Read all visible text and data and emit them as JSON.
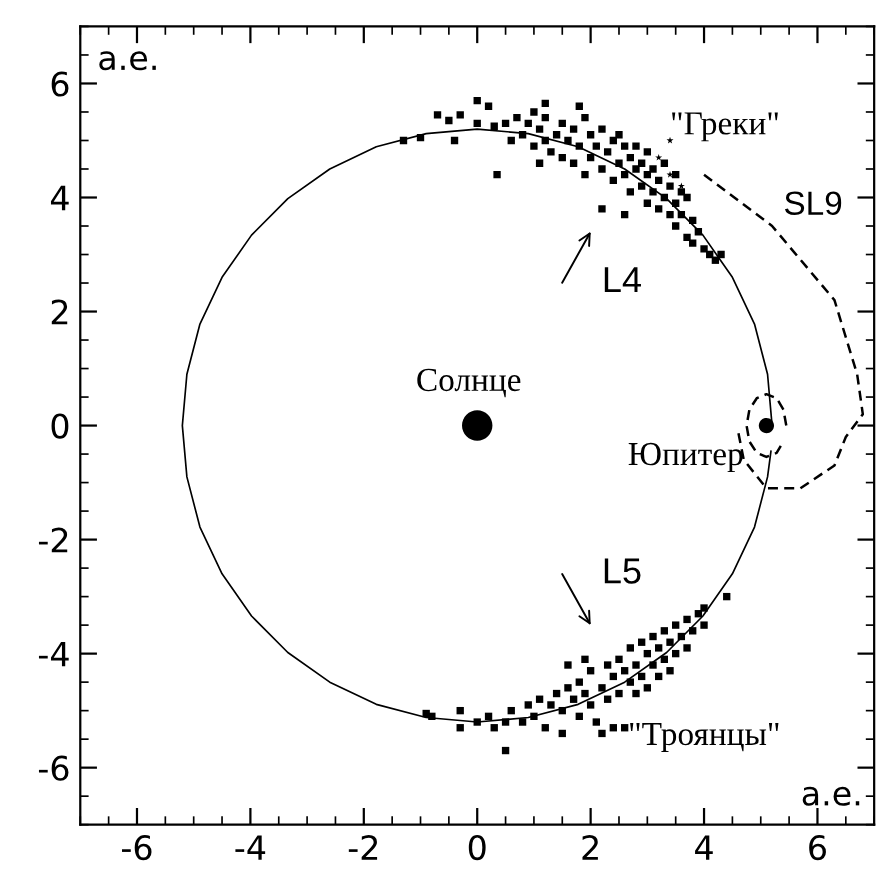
{
  "chart_data": {
    "type": "scatter",
    "xlabel": "а.е.",
    "ylabel": "а.е.",
    "xlim": [
      -7,
      7
    ],
    "ylim": [
      -7,
      7
    ],
    "xticks": [
      -6,
      -4,
      -2,
      0,
      2,
      4,
      6
    ],
    "yticks": [
      -6,
      -4,
      -2,
      0,
      2,
      4,
      6
    ],
    "grid": false,
    "legend": false,
    "series": [
      {
        "type": "line",
        "color": "#000000",
        "line_style": "solid",
        "marker": "none",
        "x": [
          5.2,
          5.12,
          4.89,
          4.5,
          3.98,
          3.34,
          2.6,
          1.78,
          0.9,
          0,
          -0.9,
          -1.78,
          -2.6,
          -3.34,
          -3.98,
          -4.5,
          -4.89,
          -5.12,
          -5.2,
          -5.12,
          -4.89,
          -4.5,
          -3.98,
          -3.34,
          -2.6,
          -1.78,
          -0.9,
          0,
          0.9,
          1.78,
          2.6,
          3.34,
          3.98,
          4.5,
          4.89,
          5.12,
          5.18
        ],
        "values": [
          0,
          0.9,
          1.78,
          2.6,
          3.34,
          3.98,
          4.5,
          4.89,
          5.12,
          5.2,
          5.12,
          4.89,
          4.5,
          3.98,
          3.34,
          2.6,
          1.78,
          0.9,
          0,
          -0.9,
          -1.78,
          -2.6,
          -3.34,
          -3.98,
          -4.5,
          -4.89,
          -5.12,
          -5.2,
          -5.12,
          -4.89,
          -4.5,
          -3.98,
          -3.34,
          -2.6,
          -1.78,
          -0.9,
          -0.45
        ]
      },
      {
        "type": "line",
        "color": "#000000",
        "line_style": "dashed",
        "marker": "none",
        "x": [
          4.0,
          5.2,
          6.3,
          6.7,
          6.8,
          6.5,
          6.3,
          5.7,
          5.1,
          4.7,
          4.6
        ],
        "values": [
          4.4,
          3.5,
          2.2,
          0.9,
          0.2,
          -0.2,
          -0.7,
          -1.1,
          -1.1,
          -0.6,
          -0.1
        ]
      },
      {
        "type": "line",
        "color": "#000000",
        "line_style": "dashed",
        "marker": "none",
        "x": [
          5.45,
          5.4,
          5.28,
          5.1,
          4.93,
          4.8,
          4.75,
          4.8,
          4.93,
          5.1,
          5.28,
          5.4
        ],
        "values": [
          0,
          0.28,
          0.48,
          0.55,
          0.48,
          0.28,
          0,
          -0.28,
          -0.48,
          -0.55,
          -0.48,
          -0.28
        ]
      },
      {
        "type": "scatter",
        "color": "#000000",
        "marker": "square",
        "x": [
          -1.3,
          -1.0,
          -0.4,
          -0.7,
          -0.5,
          -0.3,
          0.0,
          0.2,
          0.3,
          0.35,
          0.0,
          1.2,
          1.8,
          0.5,
          0.6,
          0.7,
          0.8,
          0.9,
          1.0,
          1.0,
          1.1,
          1.2,
          1.2,
          1.3,
          1.4,
          1.5,
          1.5,
          1.6,
          1.7,
          1.7,
          1.8,
          1.9,
          1.9,
          2.0,
          2.0,
          2.1,
          2.2,
          2.2,
          2.3,
          2.4,
          2.4,
          2.5,
          2.5,
          2.6,
          2.6,
          2.7,
          2.7,
          2.8,
          2.8,
          2.9,
          2.9,
          3.0,
          3.0,
          3.0,
          3.1,
          3.1,
          3.2,
          3.2,
          3.3,
          3.3,
          3.4,
          3.4,
          3.5,
          3.5,
          3.6,
          3.6,
          3.7,
          3.8,
          3.8,
          3.9,
          4.0,
          4.1,
          4.2,
          4.3,
          3.5,
          3.7,
          2.2,
          2.6,
          1.1
        ],
        "values": [
          5.0,
          5.05,
          5.0,
          5.45,
          5.35,
          5.45,
          5.3,
          5.6,
          5.25,
          4.4,
          5.7,
          5.65,
          5.6,
          5.3,
          5.0,
          5.4,
          5.1,
          5.3,
          4.9,
          5.5,
          5.2,
          5.0,
          5.4,
          4.8,
          5.1,
          5.3,
          4.7,
          5.0,
          4.6,
          5.2,
          4.9,
          5.4,
          4.4,
          5.1,
          4.7,
          4.9,
          4.5,
          5.2,
          4.8,
          4.3,
          5.0,
          4.6,
          5.1,
          4.4,
          4.9,
          4.1,
          4.7,
          4.5,
          4.9,
          4.2,
          4.6,
          4.4,
          3.9,
          4.8,
          4.1,
          4.5,
          3.8,
          4.3,
          4.0,
          4.6,
          3.7,
          4.2,
          3.9,
          3.5,
          4.1,
          3.7,
          3.3,
          3.6,
          3.2,
          3.4,
          3.1,
          3.0,
          2.9,
          3.0,
          4.4,
          4.0,
          3.8,
          3.7,
          4.6
        ]
      },
      {
        "type": "scatter",
        "color": "#000000",
        "marker": "square",
        "x": [
          -0.9,
          -0.8,
          -0.3,
          -0.3,
          0.0,
          0.2,
          0.3,
          0.5,
          0.5,
          0.6,
          0.8,
          0.9,
          1.0,
          1.1,
          1.2,
          1.3,
          1.4,
          1.5,
          1.5,
          1.6,
          1.7,
          1.8,
          1.8,
          1.9,
          2.0,
          2.0,
          2.1,
          2.2,
          2.3,
          2.3,
          2.4,
          2.5,
          2.5,
          2.6,
          2.6,
          2.7,
          2.7,
          2.8,
          2.8,
          2.9,
          2.9,
          3.0,
          3.0,
          3.1,
          3.1,
          3.2,
          3.2,
          3.3,
          3.3,
          3.4,
          3.4,
          3.5,
          3.5,
          3.6,
          3.7,
          3.7,
          3.8,
          3.9,
          4.0,
          4.0,
          4.4,
          1.6,
          1.9,
          2.2,
          2.4
        ],
        "values": [
          -5.05,
          -5.1,
          -5.0,
          -5.3,
          -5.2,
          -5.1,
          -5.3,
          -5.2,
          -5.7,
          -5.0,
          -5.2,
          -4.9,
          -5.1,
          -4.8,
          -5.3,
          -4.9,
          -4.7,
          -5.0,
          -5.4,
          -4.6,
          -4.8,
          -4.5,
          -5.1,
          -4.7,
          -4.3,
          -4.9,
          -5.2,
          -4.6,
          -4.2,
          -4.8,
          -4.4,
          -4.1,
          -4.7,
          -4.3,
          -5.3,
          -3.9,
          -4.5,
          -4.2,
          -4.7,
          -3.8,
          -4.4,
          -4.0,
          -4.6,
          -3.7,
          -4.2,
          -3.9,
          -4.4,
          -3.6,
          -4.1,
          -3.8,
          -4.3,
          -3.5,
          -4.0,
          -3.7,
          -3.4,
          -3.9,
          -3.6,
          -3.3,
          -3.5,
          -3.2,
          -3.0,
          -4.2,
          -4.1,
          -5.4,
          -5.3
        ]
      },
      {
        "type": "scatter",
        "color": "#000000",
        "marker": "star",
        "x": [
          3.4,
          3.2,
          3.4,
          3.6
        ],
        "values": [
          5.0,
          4.7,
          4.4,
          4.2
        ]
      },
      {
        "type": "scatter",
        "color": "#000000",
        "marker": "circle",
        "x": [
          0
        ],
        "values": [
          0
        ]
      },
      {
        "type": "scatter",
        "color": "#000000",
        "marker": "circle",
        "x": [
          5.1
        ],
        "values": [
          0
        ]
      }
    ],
    "annotations": [
      {
        "text": "Солнце",
        "x": 0,
        "y": 0
      },
      {
        "text": "Юпитер",
        "x": 5.1,
        "y": 0
      },
      {
        "text": "\"Греки\"",
        "x": 3.4,
        "y": 4.9
      },
      {
        "text": "SL9",
        "x": 5.2,
        "y": 3.5
      },
      "L4",
      "L5",
      "\"Троянцы\""
    ]
  }
}
